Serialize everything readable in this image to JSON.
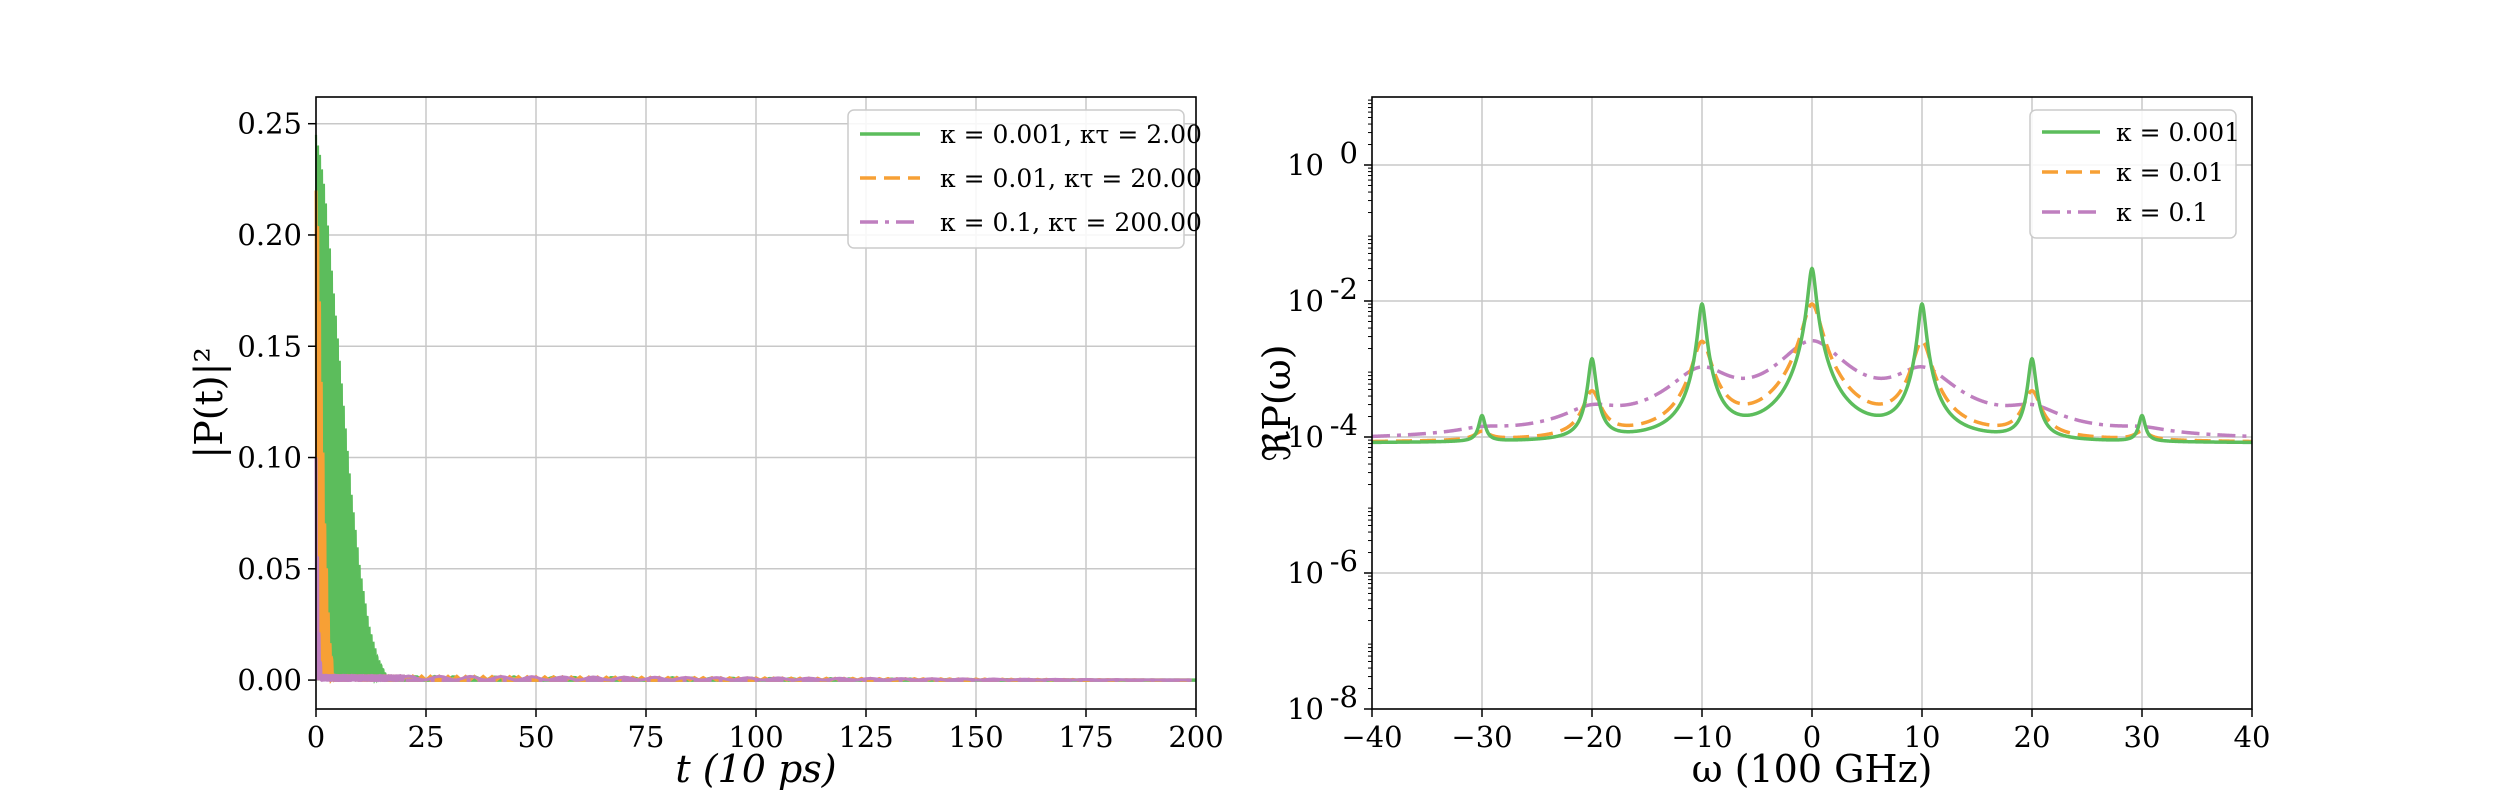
{
  "colors": {
    "green": "#5cbd5c",
    "orange": "#f7a035",
    "purple": "#bf7fbf"
  },
  "chart_data": [
    {
      "type": "line",
      "xlabel": "t (10 ps)",
      "ylabel": "|P(t)|²",
      "xlim": [
        0,
        200
      ],
      "ylim": [
        -0.013,
        0.262
      ],
      "xticks": [
        "0",
        "25",
        "50",
        "75",
        "100",
        "125",
        "150",
        "175",
        "200"
      ],
      "yticks": [
        "0.00",
        "0.05",
        "0.10",
        "0.15",
        "0.20",
        "0.25"
      ],
      "grid": true,
      "legend_position": "top-right",
      "series": [
        {
          "name": "κ = 0.001, κτ = 2.00",
          "style": "solid",
          "color": "green",
          "envelope": {
            "t": [
              0,
              1,
              2,
              4,
              6,
              8,
              10,
              12,
              14,
              16,
              200
            ],
            "max": [
              0.245,
              0.235,
              0.22,
              0.175,
              0.13,
              0.085,
              0.05,
              0.025,
              0.01,
              0.002,
              0.0
            ]
          }
        },
        {
          "name": "κ = 0.01, κτ = 20.00",
          "style": "dashed",
          "color": "orange",
          "envelope": {
            "t": [
              0,
              0.5,
              1,
              2,
              3,
              4,
              200
            ],
            "max": [
              0.22,
              0.2,
              0.15,
              0.07,
              0.02,
              0.002,
              0.0
            ]
          }
        },
        {
          "name": "κ = 0.1, κτ = 200.00",
          "style": "dashdot",
          "color": "purple",
          "envelope": {
            "t": [
              0,
              0.3,
              0.7,
              1.2,
              200
            ],
            "max": [
              0.1,
              0.06,
              0.02,
              0.002,
              0.0
            ]
          }
        }
      ]
    },
    {
      "type": "line",
      "xlabel": "ω (100 GHz)",
      "ylabel": "ℜP(ω)",
      "xlim": [
        -40,
        40
      ],
      "ylim_log10": [
        -8,
        1
      ],
      "yscale": "log",
      "xticks": [
        "−40",
        "−30",
        "−20",
        "−10",
        "0",
        "10",
        "20",
        "30",
        "40"
      ],
      "yticks": [
        {
          "base": "10",
          "exp": "-8"
        },
        {
          "base": "10",
          "exp": "-6"
        },
        {
          "base": "10",
          "exp": "-4"
        },
        {
          "base": "10",
          "exp": "-2"
        },
        {
          "base": "10",
          "exp": "0"
        }
      ],
      "grid": true,
      "legend_position": "top-right",
      "baseline": 8e-05,
      "series": [
        {
          "name": "κ = 0.001",
          "style": "solid",
          "color": "green",
          "width": 0.3,
          "peaks": [
            {
              "omega": 0,
              "value": 0.03
            },
            {
              "omega": 10,
              "value": 0.009
            },
            {
              "omega": -10,
              "value": 0.009
            },
            {
              "omega": 20,
              "value": 0.0014
            },
            {
              "omega": -20,
              "value": 0.0014
            },
            {
              "omega": 30,
              "value": 0.0002
            },
            {
              "omega": -30,
              "value": 0.0002
            }
          ]
        },
        {
          "name": "κ = 0.01",
          "style": "dashed",
          "color": "orange",
          "width": 0.75,
          "peaks": [
            {
              "omega": 0,
              "value": 0.009
            },
            {
              "omega": 10,
              "value": 0.0025
            },
            {
              "omega": -10,
              "value": 0.0025
            },
            {
              "omega": 20,
              "value": 0.00045
            },
            {
              "omega": -20,
              "value": 0.00045
            },
            {
              "omega": 30,
              "value": 0.00011
            },
            {
              "omega": -30,
              "value": 0.00011
            }
          ]
        },
        {
          "name": "κ = 0.1",
          "style": "dashdot",
          "color": "purple",
          "width": 2.6,
          "peaks": [
            {
              "omega": 0,
              "value": 0.0025
            },
            {
              "omega": 10,
              "value": 0.0009
            },
            {
              "omega": -10,
              "value": 0.0009
            },
            {
              "omega": 20,
              "value": 0.0002
            },
            {
              "omega": -20,
              "value": 0.0002
            },
            {
              "omega": 30,
              "value": 0.0001
            },
            {
              "omega": -30,
              "value": 0.0001
            }
          ]
        }
      ]
    }
  ]
}
